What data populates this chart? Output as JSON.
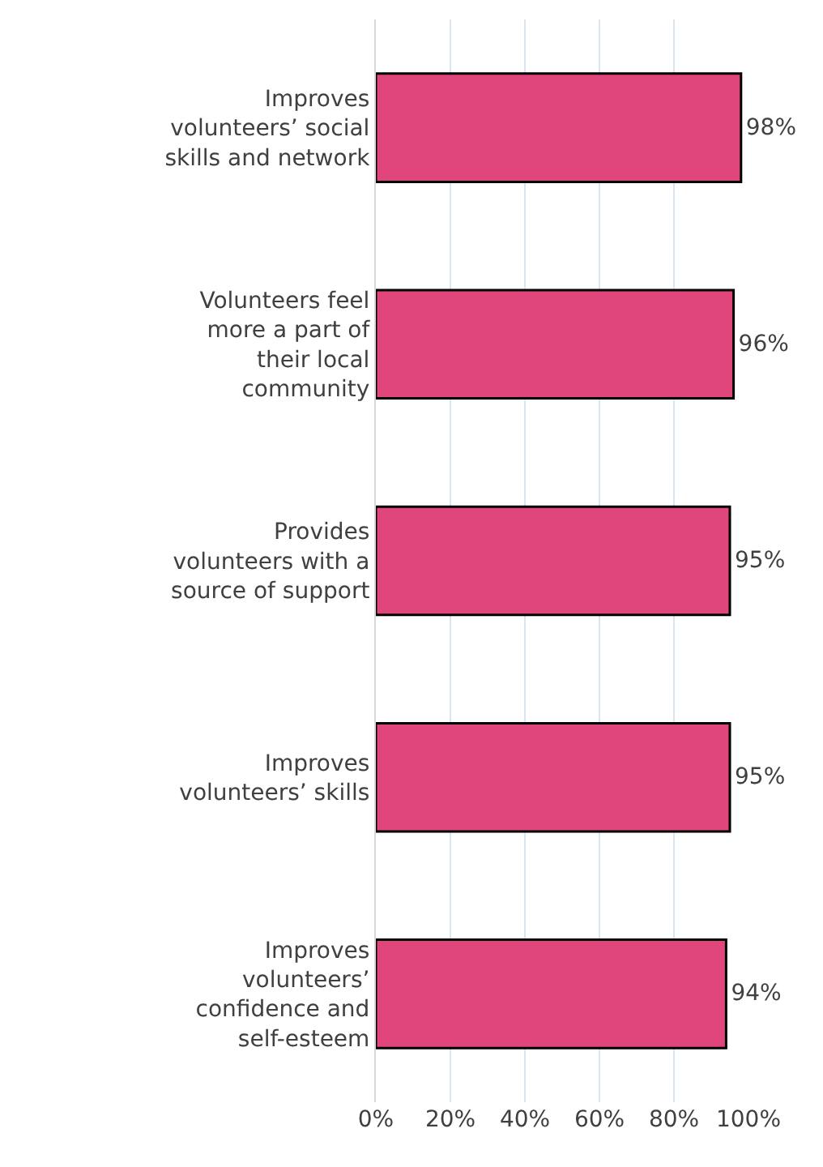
{
  "chart_data": {
    "type": "bar",
    "orientation": "horizontal",
    "categories": [
      "Improves volunteers’ social skills and network",
      "Volunteers feel more a part of their local community",
      "Provides volunteers with a source of support",
      "Improves volunteers’ skills",
      "Improves volunteers’ confidence and self-esteem"
    ],
    "values": [
      98,
      96,
      95,
      95,
      94
    ],
    "value_labels": [
      "98%",
      "96%",
      "95%",
      "95%",
      "94%"
    ],
    "color": "#e0457b",
    "xlim": [
      0,
      100
    ],
    "xticks": [
      {
        "value": 0,
        "label": "0%"
      },
      {
        "value": 20,
        "label": "20%"
      },
      {
        "value": 40,
        "label": "40%"
      },
      {
        "value": 60,
        "label": "60%"
      },
      {
        "value": 80,
        "label": "80%"
      },
      {
        "value": 100,
        "label": "100%"
      }
    ],
    "grid": "x"
  }
}
